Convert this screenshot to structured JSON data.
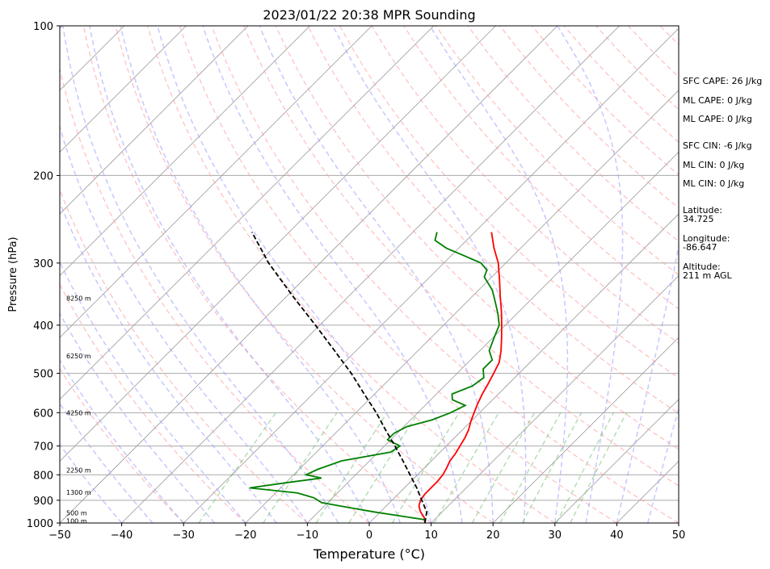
{
  "chart_data": {
    "type": "line",
    "title": "2023/01/22 20:38 MPR Sounding",
    "xlabel": "Temperature (°C)",
    "ylabel": "Pressure (hPa)",
    "xlim": [
      -50,
      50
    ],
    "ylim": [
      1000,
      100
    ],
    "y_scale": "log",
    "skew": true,
    "grid": true,
    "x_ticks": [
      -50,
      -40,
      -30,
      -20,
      -10,
      0,
      10,
      20,
      30,
      40,
      50
    ],
    "y_ticks": [
      100,
      200,
      300,
      400,
      500,
      600,
      700,
      800,
      900,
      1000
    ],
    "series": [
      {
        "color": "#ff0000",
        "points": [
          [
            1000,
            9.0
          ],
          [
            975,
            8.0
          ],
          [
            950,
            6.5
          ],
          [
            925,
            5.3
          ],
          [
            900,
            4.6
          ],
          [
            875,
            4.3
          ],
          [
            850,
            4.3
          ],
          [
            825,
            4.3
          ],
          [
            800,
            4.1
          ],
          [
            775,
            3.6
          ],
          [
            750,
            3.0
          ],
          [
            725,
            2.7
          ],
          [
            700,
            2.2
          ],
          [
            675,
            1.7
          ],
          [
            650,
            1.0
          ],
          [
            625,
            0.0
          ],
          [
            600,
            -0.9
          ],
          [
            575,
            -1.8
          ],
          [
            550,
            -2.6
          ],
          [
            525,
            -3.3
          ],
          [
            500,
            -4.1
          ],
          [
            475,
            -5.0
          ],
          [
            450,
            -6.6
          ],
          [
            425,
            -8.5
          ],
          [
            400,
            -10.6
          ],
          [
            375,
            -12.9
          ],
          [
            350,
            -15.5
          ],
          [
            325,
            -18.2
          ],
          [
            300,
            -21.2
          ],
          [
            280,
            -24.3
          ],
          [
            260,
            -27.3
          ]
        ]
      },
      {
        "color": "#008000",
        "points": [
          [
            985,
            8.5
          ],
          [
            970,
            4.5
          ],
          [
            950,
            -1.0
          ],
          [
            930,
            -6.0
          ],
          [
            910,
            -11.0
          ],
          [
            890,
            -13.0
          ],
          [
            870,
            -16.5
          ],
          [
            850,
            -25.0
          ],
          [
            830,
            -20.0
          ],
          [
            812,
            -15.0
          ],
          [
            800,
            -18.0
          ],
          [
            780,
            -17.0
          ],
          [
            750,
            -14.5
          ],
          [
            720,
            -8.0
          ],
          [
            700,
            -7.5
          ],
          [
            680,
            -10.5
          ],
          [
            660,
            -10.5
          ],
          [
            640,
            -9.5
          ],
          [
            620,
            -6.5
          ],
          [
            600,
            -4.7
          ],
          [
            580,
            -3.5
          ],
          [
            565,
            -6.5
          ],
          [
            550,
            -7.5
          ],
          [
            530,
            -5.5
          ],
          [
            510,
            -5.0
          ],
          [
            490,
            -6.5
          ],
          [
            470,
            -6.5
          ],
          [
            450,
            -8.5
          ],
          [
            420,
            -10.0
          ],
          [
            400,
            -11.0
          ],
          [
            380,
            -13.0
          ],
          [
            360,
            -15.3
          ],
          [
            340,
            -17.8
          ],
          [
            320,
            -21.2
          ],
          [
            310,
            -21.9
          ],
          [
            300,
            -24.0
          ],
          [
            290,
            -27.9
          ],
          [
            280,
            -32.0
          ],
          [
            270,
            -35.1
          ],
          [
            260,
            -36.1
          ]
        ]
      },
      {
        "color": "#000000",
        "style": "dashed",
        "points": [
          [
            1000,
            9.0
          ],
          [
            950,
            7.5
          ],
          [
            900,
            4.8
          ],
          [
            850,
            2.0
          ],
          [
            800,
            -1.2
          ],
          [
            750,
            -4.6
          ],
          [
            700,
            -8.3
          ],
          [
            650,
            -12.4
          ],
          [
            600,
            -16.7
          ],
          [
            550,
            -21.7
          ],
          [
            500,
            -27.1
          ],
          [
            450,
            -33.5
          ],
          [
            400,
            -40.7
          ],
          [
            350,
            -49.0
          ],
          [
            300,
            -58.3
          ],
          [
            260,
            -66.0
          ]
        ]
      }
    ],
    "height_labels": [
      {
        "pressure": 990,
        "label": "100 m"
      },
      {
        "pressure": 955,
        "label": "500 m"
      },
      {
        "pressure": 868,
        "label": "1300 m"
      },
      {
        "pressure": 783,
        "label": "2250 m"
      },
      {
        "pressure": 600,
        "label": "4250 m"
      },
      {
        "pressure": 461,
        "label": "6250 m"
      },
      {
        "pressure": 353,
        "label": "8250 m"
      }
    ]
  },
  "indices": {
    "sfc_cape": "SFC CAPE: 26 J/kg",
    "ml_cape_1": "ML CAPE: 0 J/kg",
    "ml_cape_2": "ML CAPE: 0 J/kg",
    "sfc_cin": "SFC CIN: -6 J/kg",
    "ml_cin_1": "ML CIN: 0 J/kg",
    "ml_cin_2": "ML CIN: 0 J/kg",
    "latitude_label": "Latitude:",
    "latitude_value": "34.725",
    "longitude_label": "Longitude:",
    "longitude_value": "-86.647",
    "altitude_label": "Altitude:",
    "altitude_value": "211 m AGL"
  }
}
